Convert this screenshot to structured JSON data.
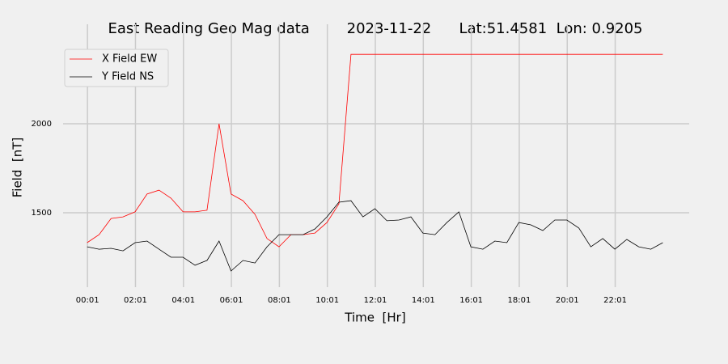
{
  "chart_data": {
    "type": "line",
    "title": "East Reading Geo Mag data        2023-11-22      Lat:51.4581  Lon: 0.9205",
    "x_label": "Time  [Hr]",
    "y_label": "Field  [nT]",
    "x": [
      0,
      0.5,
      1,
      1.5,
      2,
      2.5,
      3,
      3.5,
      4,
      4.5,
      5,
      5.5,
      6,
      6.5,
      7,
      7.5,
      8,
      8.5,
      9,
      9.5,
      10,
      10.5,
      11,
      11.5,
      12,
      12.5,
      13,
      13.5,
      14,
      14.5,
      15,
      15.5,
      16,
      16.5,
      17,
      17.5,
      18,
      18.5,
      19,
      19.5,
      20,
      20.5,
      21,
      21.5,
      22,
      22.5,
      23,
      23.5,
      24
    ],
    "series": [
      {
        "name": "X Field EW",
        "color": "#ff0000",
        "values": [
          1332,
          1377,
          1468,
          1477,
          1505,
          1605,
          1627,
          1582,
          1505,
          1505,
          1514,
          2000,
          1605,
          1568,
          1491,
          1355,
          1309,
          1377,
          1377,
          1386,
          1445,
          1550,
          2390,
          2390,
          2390,
          2390,
          2390,
          2390,
          2390,
          2390,
          2390,
          2390,
          2390,
          2390,
          2390,
          2390,
          2390,
          2390,
          2390,
          2390,
          2390,
          2390,
          2390,
          2390,
          2390,
          2390,
          2390,
          2390,
          2390
        ]
      },
      {
        "name": "Y Field NS",
        "color": "#000000",
        "values": [
          1309,
          1295,
          1300,
          1286,
          1332,
          1341,
          1295,
          1250,
          1250,
          1205,
          1232,
          1341,
          1173,
          1232,
          1218,
          1309,
          1377,
          1377,
          1377,
          1409,
          1477,
          1559,
          1568,
          1477,
          1523,
          1455,
          1459,
          1477,
          1386,
          1377,
          1445,
          1505,
          1309,
          1295,
          1341,
          1332,
          1445,
          1432,
          1400,
          1459,
          1459,
          1414,
          1309,
          1355,
          1295,
          1350,
          1309,
          1295,
          1332
        ]
      }
    ],
    "xlim": [
      -1.0,
      25.1
    ],
    "ylim": [
      1082,
      2559
    ],
    "xticks": [
      {
        "value": 0.0167,
        "label": "00:01"
      },
      {
        "value": 2.0167,
        "label": "02:01"
      },
      {
        "value": 4.0167,
        "label": "04:01"
      },
      {
        "value": 6.0167,
        "label": "06:01"
      },
      {
        "value": 8.0167,
        "label": "08:01"
      },
      {
        "value": 10.0167,
        "label": "10:01"
      },
      {
        "value": 12.0167,
        "label": "12:01"
      },
      {
        "value": 14.0167,
        "label": "14:01"
      },
      {
        "value": 16.0167,
        "label": "16:01"
      },
      {
        "value": 18.0167,
        "label": "18:01"
      },
      {
        "value": 20.0167,
        "label": "20:01"
      },
      {
        "value": 22.0167,
        "label": "22:01"
      }
    ],
    "yticks": [
      1500,
      2000
    ],
    "grid": true,
    "legend": "upper left"
  }
}
